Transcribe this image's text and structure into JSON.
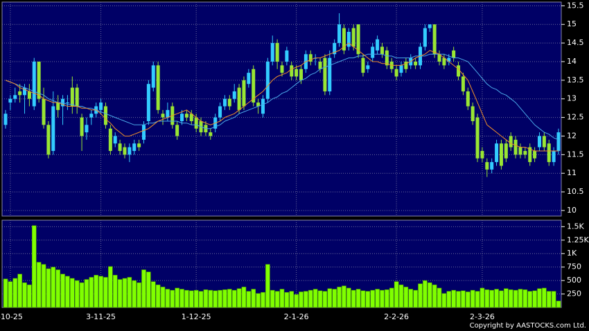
{
  "chart_data": [
    {
      "type": "candlestick",
      "categories": [
        null,
        "-10-25",
        null,
        null,
        null,
        null,
        null,
        null,
        null,
        null,
        null,
        null,
        null,
        null,
        null,
        null,
        null,
        null,
        null,
        null,
        "3-11-25",
        null,
        null,
        null,
        null,
        null,
        null,
        null,
        null,
        null,
        null,
        null,
        null,
        null,
        null,
        null,
        null,
        null,
        null,
        null,
        "1-12-25",
        null,
        null,
        null,
        null,
        null,
        null,
        null,
        null,
        null,
        null,
        null,
        null,
        null,
        null,
        null,
        null,
        null,
        null,
        null,
        null,
        "2-1-26",
        null,
        null,
        null,
        null,
        null,
        null,
        null,
        null,
        null,
        null,
        null,
        null,
        null,
        null,
        null,
        null,
        null,
        null,
        null,
        null,
        "2-2-26",
        null,
        null,
        null,
        null,
        null,
        null,
        null,
        null,
        null,
        null,
        null,
        null,
        null,
        null,
        null,
        null,
        null,
        "2-3-26",
        null,
        null,
        null,
        null,
        null,
        null,
        null,
        null,
        null,
        null,
        null,
        null,
        null,
        null,
        null,
        null
      ],
      "open": [
        12.3,
        12.9,
        13.0,
        13.2,
        13.1,
        13.2,
        12.8,
        14.0,
        13.0,
        12.3,
        11.6,
        12.9,
        12.8,
        12.9,
        13.3,
        13.3,
        12.5,
        12.1,
        12.5,
        12.6,
        12.7,
        12.8,
        12.2,
        11.8,
        11.8,
        11.7,
        11.5,
        11.6,
        11.8,
        11.9,
        12.4,
        13.3,
        13.9,
        12.6,
        12.5,
        12.8,
        12.3,
        12.4,
        12.6,
        12.6,
        12.5,
        12.4,
        12.3,
        12.1,
        12.2,
        12.5,
        12.8,
        13.0,
        13.0,
        13.3,
        13.5,
        13.4,
        13.8,
        12.9,
        12.6,
        13.0,
        14.0,
        14.5,
        13.9,
        14.0,
        13.9,
        13.8,
        13.8,
        13.8,
        14.2,
        14.1,
        14.0,
        14.1,
        13.2,
        14.2,
        14.5,
        14.9,
        14.4,
        14.9,
        15.0,
        14.1,
        13.8,
        14.1,
        14.3,
        14.4,
        14.3,
        14.0,
        13.8,
        13.7,
        14.0,
        13.9,
        14.0,
        13.9,
        14.4,
        14.9,
        15.0,
        14.2,
        14.1,
        14.0,
        14.3,
        13.9,
        13.6,
        13.2,
        12.8,
        12.5,
        11.6,
        11.3,
        11.1,
        11.3,
        11.8,
        11.8,
        12.0,
        11.9,
        11.7,
        11.6,
        11.7,
        11.6,
        11.7,
        12.0,
        11.8,
        11.3,
        11.6
      ],
      "high": [
        12.7,
        13.1,
        13.3,
        13.4,
        13.4,
        13.4,
        14.1,
        14.0,
        13.3,
        12.4,
        13.2,
        13.1,
        13.1,
        13.1,
        13.6,
        13.4,
        12.6,
        12.5,
        12.7,
        12.9,
        13.0,
        12.9,
        12.3,
        12.1,
        11.9,
        11.8,
        11.8,
        11.9,
        11.9,
        12.4,
        13.5,
        14.0,
        14.0,
        12.7,
        12.9,
        12.9,
        12.4,
        12.7,
        12.7,
        12.7,
        12.6,
        12.5,
        12.4,
        12.2,
        12.6,
        12.9,
        13.1,
        13.1,
        13.4,
        13.4,
        13.6,
        13.8,
        13.9,
        13.0,
        13.1,
        14.1,
        14.7,
        14.6,
        14.0,
        14.4,
        14.0,
        13.9,
        13.9,
        14.3,
        14.3,
        14.2,
        14.1,
        14.2,
        14.3,
        14.6,
        15.3,
        15.0,
        14.9,
        15.0,
        15.0,
        14.2,
        14.0,
        14.5,
        14.7,
        14.5,
        14.4,
        14.1,
        13.9,
        14.0,
        14.1,
        14.2,
        14.1,
        14.5,
        15.0,
        15.0,
        15.0,
        14.3,
        14.2,
        14.2,
        14.4,
        14.0,
        13.7,
        13.3,
        12.9,
        12.6,
        11.7,
        11.4,
        11.4,
        11.9,
        11.9,
        11.9,
        12.1,
        12.0,
        11.8,
        11.7,
        11.8,
        11.7,
        12.1,
        12.1,
        11.9,
        11.7,
        12.2
      ],
      "low": [
        12.2,
        12.7,
        12.9,
        12.9,
        12.6,
        12.8,
        12.7,
        12.9,
        12.2,
        11.4,
        11.5,
        12.5,
        12.3,
        12.7,
        12.6,
        12.6,
        11.6,
        11.9,
        12.3,
        12.5,
        12.6,
        12.2,
        11.5,
        11.7,
        11.5,
        11.4,
        11.3,
        11.5,
        11.6,
        11.8,
        12.3,
        13.2,
        12.6,
        12.3,
        12.4,
        12.2,
        11.9,
        12.3,
        12.4,
        12.3,
        12.1,
        12.0,
        12.0,
        11.9,
        12.1,
        12.4,
        12.7,
        12.7,
        12.9,
        12.6,
        12.7,
        13.3,
        12.8,
        12.6,
        12.5,
        12.9,
        13.9,
        13.8,
        13.6,
        13.9,
        13.5,
        13.5,
        13.4,
        13.7,
        13.9,
        13.9,
        13.7,
        13.1,
        13.1,
        14.1,
        14.4,
        14.2,
        14.3,
        14.3,
        14.1,
        13.6,
        13.7,
        14.0,
        14.2,
        14.1,
        13.8,
        13.7,
        13.5,
        13.6,
        13.7,
        13.8,
        13.8,
        13.8,
        14.3,
        14.8,
        14.1,
        13.9,
        13.8,
        13.9,
        14.0,
        13.5,
        13.1,
        12.7,
        12.3,
        11.3,
        11.3,
        10.9,
        11.0,
        11.2,
        11.1,
        11.3,
        11.6,
        11.4,
        11.4,
        11.4,
        11.2,
        11.3,
        11.6,
        11.6,
        11.2,
        11.2,
        11.5
      ],
      "close": [
        12.6,
        13.0,
        13.1,
        13.1,
        13.3,
        13.0,
        14.0,
        13.0,
        12.3,
        11.5,
        12.8,
        12.7,
        13.0,
        12.9,
        12.8,
        12.8,
        12.0,
        12.3,
        12.6,
        12.8,
        12.9,
        12.3,
        11.6,
        12.0,
        11.6,
        11.5,
        11.7,
        11.8,
        11.7,
        12.3,
        13.4,
        13.9,
        12.7,
        12.5,
        12.7,
        12.3,
        12.0,
        12.6,
        12.5,
        12.4,
        12.2,
        12.1,
        12.1,
        12.0,
        12.5,
        12.8,
        13.0,
        12.8,
        13.2,
        12.7,
        12.8,
        13.7,
        12.9,
        12.8,
        13.0,
        14.0,
        14.5,
        14.0,
        13.7,
        14.3,
        13.6,
        13.6,
        13.5,
        14.2,
        14.0,
        14.1,
        13.8,
        13.2,
        14.1,
        14.5,
        15.0,
        14.3,
        14.8,
        14.4,
        14.2,
        13.7,
        13.9,
        14.4,
        14.6,
        14.2,
        13.9,
        13.8,
        13.6,
        13.9,
        13.8,
        14.1,
        13.9,
        14.4,
        14.9,
        15.0,
        14.2,
        14.0,
        13.9,
        14.1,
        14.1,
        13.6,
        13.2,
        12.8,
        12.4,
        11.4,
        11.4,
        11.1,
        11.3,
        11.8,
        11.2,
        11.4,
        11.7,
        11.5,
        11.5,
        11.5,
        11.3,
        11.4,
        12.0,
        11.7,
        11.3,
        11.6,
        12.1
      ],
      "up_color": "#33ccff",
      "down_color": "#99e633",
      "lines": [
        {
          "color": "#4aa8e8",
          "values": [
            13.5,
            13.45,
            13.4,
            13.35,
            13.3,
            13.25,
            13.2,
            13.15,
            13.1,
            13.0,
            12.95,
            12.9,
            12.9,
            12.85,
            12.85,
            12.8,
            12.8,
            12.75,
            12.75,
            12.7,
            12.65,
            12.6,
            12.55,
            12.5,
            12.45,
            12.4,
            12.35,
            12.3,
            12.3,
            12.3,
            12.35,
            12.35,
            12.4,
            12.4,
            12.4,
            12.4,
            12.4,
            12.35,
            12.35,
            12.3,
            12.3,
            12.25,
            12.2,
            12.2,
            12.25,
            12.3,
            12.4,
            12.45,
            12.5,
            12.6,
            12.65,
            12.7,
            12.75,
            12.8,
            12.85,
            12.9,
            13.0,
            13.05,
            13.15,
            13.2,
            13.3,
            13.4,
            13.5,
            13.55,
            13.65,
            13.7,
            13.8,
            13.85,
            13.9,
            13.95,
            14.0,
            14.05,
            14.1,
            14.1,
            14.15,
            14.15,
            14.2,
            14.2,
            14.2,
            14.2,
            14.15,
            14.15,
            14.1,
            14.1,
            14.1,
            14.1,
            14.15,
            14.15,
            14.15,
            14.2,
            14.2,
            14.2,
            14.2,
            14.15,
            14.1,
            14.1,
            14.05,
            14.0,
            13.85,
            13.7,
            13.55,
            13.4,
            13.3,
            13.25,
            13.15,
            13.1,
            13.0,
            12.9,
            12.75,
            12.6,
            12.45,
            12.3,
            12.2,
            12.1,
            12.05,
            11.95,
            11.9
          ]
        },
        {
          "color": "#f0902a",
          "values": [
            13.5,
            13.45,
            13.4,
            13.3,
            13.25,
            13.2,
            13.15,
            13.1,
            13.0,
            12.95,
            12.9,
            12.9,
            12.85,
            12.8,
            12.8,
            12.8,
            12.75,
            12.75,
            12.7,
            12.7,
            12.6,
            12.45,
            12.35,
            12.2,
            12.1,
            12.0,
            12.0,
            12.05,
            12.1,
            12.15,
            12.2,
            12.3,
            12.4,
            12.45,
            12.5,
            12.55,
            12.6,
            12.65,
            12.7,
            12.6,
            12.5,
            12.4,
            12.35,
            12.3,
            12.35,
            12.4,
            12.5,
            12.55,
            12.6,
            12.7,
            12.8,
            12.9,
            13.0,
            13.1,
            13.2,
            13.35,
            13.5,
            13.6,
            13.65,
            13.7,
            13.8,
            13.85,
            13.9,
            14.0,
            14.05,
            14.1,
            14.1,
            14.15,
            14.2,
            14.25,
            14.3,
            14.4,
            14.5,
            14.4,
            14.3,
            14.2,
            14.1,
            14.0,
            14.0,
            13.95,
            13.95,
            13.9,
            13.9,
            13.9,
            13.95,
            14.0,
            14.1,
            14.15,
            14.2,
            14.3,
            14.25,
            14.2,
            14.1,
            14.0,
            13.9,
            13.8,
            13.65,
            13.5,
            13.2,
            12.9,
            12.6,
            12.3,
            12.2,
            12.1,
            12.0,
            11.9,
            11.8,
            11.75,
            11.7,
            11.7,
            11.65,
            11.6,
            11.6,
            11.6,
            11.6,
            11.6,
            11.6
          ]
        }
      ],
      "ylim": [
        9.85,
        15.6
      ],
      "yticks": [
        10,
        10.5,
        11,
        11.5,
        12,
        12.5,
        13,
        13.5,
        14,
        14.5,
        15,
        15.5
      ],
      "grid": true
    },
    {
      "type": "bar",
      "values": [
        530,
        480,
        540,
        620,
        460,
        420,
        1520,
        840,
        800,
        720,
        750,
        700,
        620,
        580,
        540,
        500,
        460,
        520,
        560,
        600,
        580,
        560,
        760,
        600,
        520,
        540,
        560,
        500,
        460,
        700,
        660,
        480,
        420,
        380,
        340,
        320,
        360,
        340,
        320,
        310,
        320,
        300,
        330,
        320,
        310,
        320,
        330,
        340,
        320,
        350,
        380,
        300,
        340,
        260,
        280,
        800,
        320,
        300,
        340,
        280,
        300,
        240,
        290,
        300,
        320,
        340,
        310,
        300,
        350,
        340,
        380,
        400,
        360,
        320,
        340,
        310,
        300,
        320,
        340,
        320,
        330,
        360,
        480,
        420,
        380,
        340,
        320,
        440,
        500,
        460,
        420,
        360,
        260,
        300,
        320,
        300,
        310,
        290,
        320,
        300,
        360,
        330,
        320,
        340,
        310,
        350,
        330,
        320,
        340,
        330,
        300,
        310,
        350,
        360,
        300,
        300,
        120
      ],
      "color": "#80ff00",
      "ylim": [
        0,
        1620
      ],
      "yticks": [
        250,
        500,
        750,
        {
          "value": 1000,
          "label": "1K"
        },
        {
          "value": 1250,
          "label": "1.25K"
        },
        {
          "value": 1500,
          "label": "1.5K"
        }
      ],
      "grid": true
    }
  ],
  "footer": "Copyright by AASTOCKS.com Ltd."
}
